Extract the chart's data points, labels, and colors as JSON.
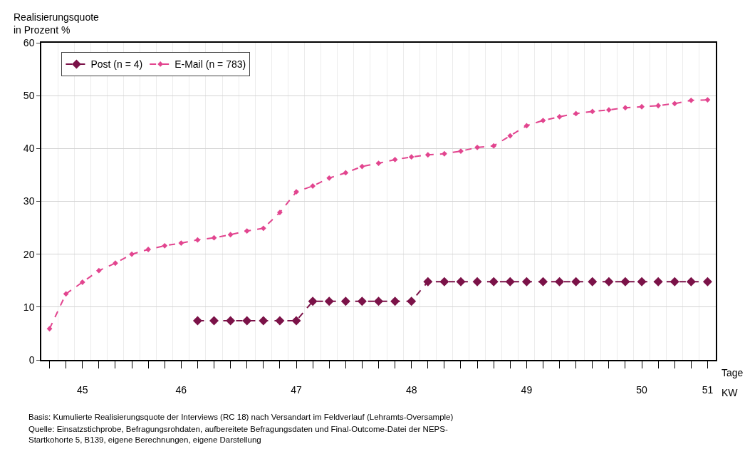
{
  "chart_data": {
    "type": "line",
    "ylabel": "Realisierungsquote\nin Prozent %",
    "xlabel": "Tage",
    "categories": [
      null,
      null,
      "45",
      null,
      null,
      null,
      null,
      null,
      "46",
      null,
      null,
      null,
      null,
      null,
      null,
      "47",
      null,
      null,
      null,
      null,
      null,
      null,
      "48",
      null,
      null,
      null,
      null,
      null,
      null,
      "49",
      null,
      null,
      null,
      null,
      null,
      null,
      "50",
      null,
      null,
      null,
      "51"
    ],
    "series": [
      {
        "name": "Post (n = 4)",
        "color": "#7b1248",
        "values": [
          null,
          null,
          null,
          null,
          null,
          null,
          null,
          null,
          null,
          7.4,
          7.4,
          7.4,
          7.4,
          7.4,
          7.4,
          7.4,
          11.1,
          11.1,
          11.1,
          11.1,
          11.1,
          11.1,
          11.1,
          14.8,
          14.8,
          14.8,
          14.8,
          14.8,
          14.8,
          14.8,
          14.8,
          14.8,
          14.8,
          14.8,
          14.8,
          14.8,
          14.8,
          14.8,
          14.8,
          14.8,
          14.8
        ]
      },
      {
        "name": "E-Mail (n = 783)",
        "color": "#e2458f",
        "values": [
          5.9,
          12.5,
          14.7,
          16.9,
          18.3,
          20.0,
          20.9,
          21.6,
          22.1,
          22.7,
          23.1,
          23.7,
          24.4,
          24.9,
          27.9,
          31.8,
          32.9,
          34.4,
          35.4,
          36.6,
          37.2,
          37.9,
          38.4,
          38.8,
          39.0,
          39.5,
          40.2,
          40.5,
          42.4,
          44.3,
          45.3,
          46.0,
          46.6,
          47.0,
          47.3,
          47.7,
          47.9,
          48.1,
          48.5,
          49.1,
          49.2
        ]
      }
    ],
    "ylim": [
      0,
      60
    ],
    "yticks": [
      0,
      10,
      20,
      30,
      40,
      50,
      60
    ],
    "grid": true,
    "legend": "top left",
    "marker": "diamond",
    "line_style": "dashed",
    "annotations": [
      "KW",
      "Basis: Kumulierte Realisierungsquote der Interviews (RC 18) nach Versandart im Feldverlauf (Lehramts-Oversample)",
      "Quelle: Einsatzstichprobe, Befragungsrohdaten, aufbereitete Befragungsdaten und Final-Outcome-Datei der NEPS-\nStartkohorte 5, B139, eigene Berechnungen, eigene Darstellung"
    ]
  }
}
